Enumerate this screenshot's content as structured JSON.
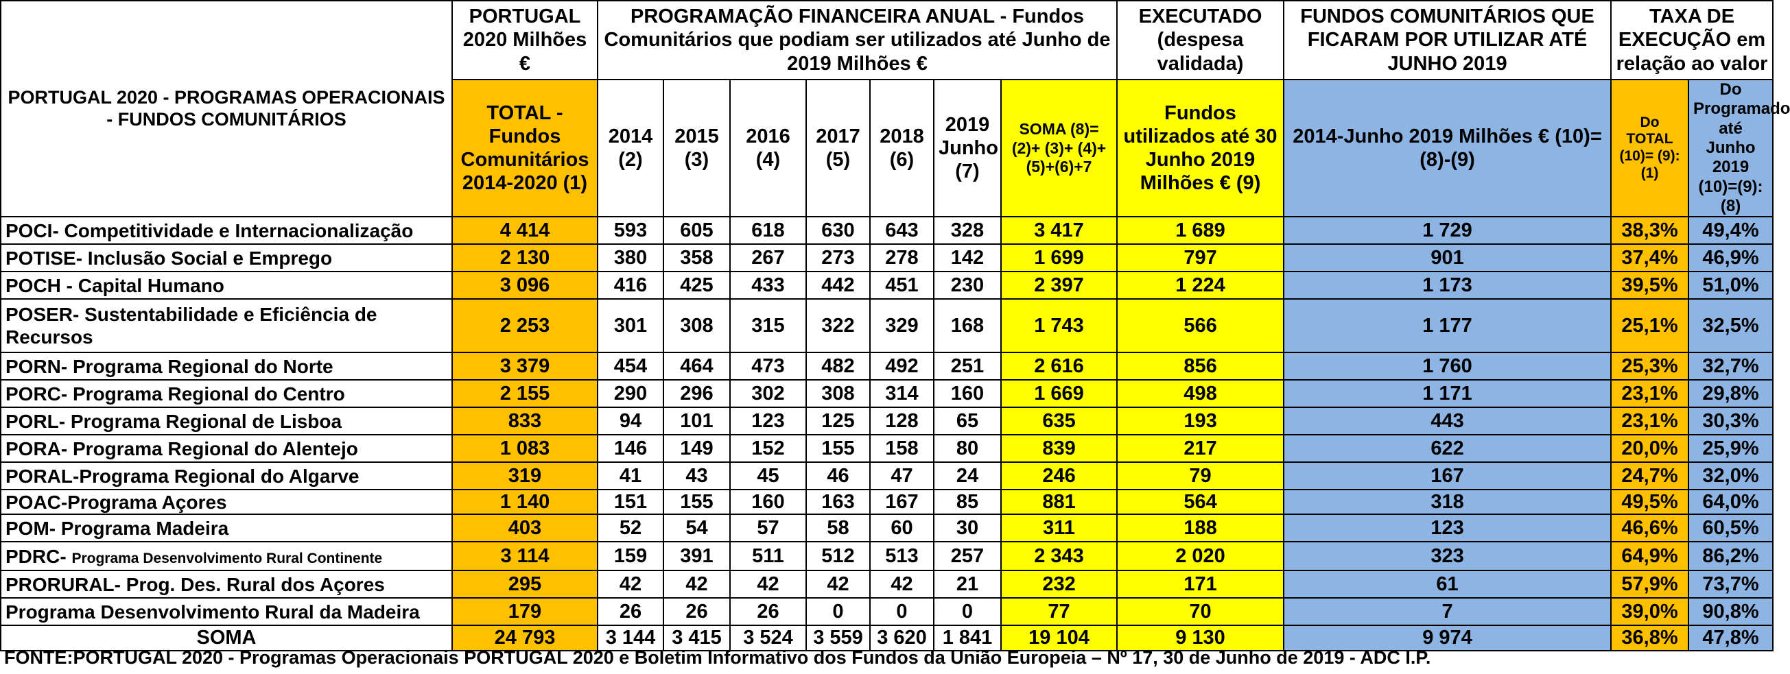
{
  "headers": {
    "program_col": "PORTUGAL 2020 - PROGRAMAS OPERACIONAIS - FUNDOS COMUNITÁRIOS",
    "pt2020_top": "PORTUGAL 2020 Milhões €",
    "pt2020_sub": "TOTAL - Fundos Comunitários 2014-2020 (1)",
    "annual_top": "PROGRAMAÇÃO FINANCEIRA ANUAL - Fundos Comunitários que podiam ser utilizados até Junho de 2019 Milhões €",
    "years": [
      "2014 (2)",
      "2015 (3)",
      "2016 (4)",
      "2017 (5)",
      "2018 (6)",
      "2019 Junho (7)"
    ],
    "soma_sub": "SOMA (8)=(2)+ (3)+ (4)+(5)+(6)+7",
    "executed_top": "EXECUTADO (despesa validada)",
    "executed_sub": "Fundos utilizados até 30 Junho 2019 Milhões € (9)",
    "unused_top": "FUNDOS COMUNITÁRIOS QUE FICARAM POR UTILIZAR ATÉ JUNHO 2019",
    "unused_sub": "2014-Junho 2019 Milhões € (10)=(8)-(9)",
    "rate_top": "TAXA DE EXECUÇÃO em relação ao valor",
    "rate_total_sub": "Do TOTAL (10)= (9): (1)",
    "rate_prog_sub": "Do Programado até Junho 2019 (10)=(9):(8)"
  },
  "rows": [
    {
      "name": "POCI- Competitividade e Internacionalização",
      "small": "",
      "total": "4 414",
      "y2014": "593",
      "y2015": "605",
      "y2016": "618",
      "y2017": "630",
      "y2018": "643",
      "y2019": "328",
      "soma": "3 417",
      "exec": "1 689",
      "unused": "1 729",
      "rate_total": "38,3%",
      "rate_prog": "49,4%"
    },
    {
      "name": "POTISE- Inclusão Social e Emprego",
      "small": "",
      "total": "2 130",
      "y2014": "380",
      "y2015": "358",
      "y2016": "267",
      "y2017": "273",
      "y2018": "278",
      "y2019": "142",
      "soma": "1 699",
      "exec": "797",
      "unused": "901",
      "rate_total": "37,4%",
      "rate_prog": "46,9%"
    },
    {
      "name": "POCH - Capital Humano",
      "small": "",
      "total": "3 096",
      "y2014": "416",
      "y2015": "425",
      "y2016": "433",
      "y2017": "442",
      "y2018": "451",
      "y2019": "230",
      "soma": "2 397",
      "exec": "1 224",
      "unused": "1 173",
      "rate_total": "39,5%",
      "rate_prog": "51,0%"
    },
    {
      "name": "POSER- Sustentabilidade e Eficiência de Recursos",
      "small": "",
      "total": "2 253",
      "y2014": "301",
      "y2015": "308",
      "y2016": "315",
      "y2017": "322",
      "y2018": "329",
      "y2019": "168",
      "soma": "1 743",
      "exec": "566",
      "unused": "1 177",
      "rate_total": "25,1%",
      "rate_prog": "32,5%"
    },
    {
      "name": "PORN- Programa Regional do Norte",
      "small": "",
      "total": "3 379",
      "y2014": "454",
      "y2015": "464",
      "y2016": "473",
      "y2017": "482",
      "y2018": "492",
      "y2019": "251",
      "soma": "2 616",
      "exec": "856",
      "unused": "1 760",
      "rate_total": "25,3%",
      "rate_prog": "32,7%"
    },
    {
      "name": "PORC- Programa Regional do Centro",
      "small": "",
      "total": "2 155",
      "y2014": "290",
      "y2015": "296",
      "y2016": "302",
      "y2017": "308",
      "y2018": "314",
      "y2019": "160",
      "soma": "1 669",
      "exec": "498",
      "unused": "1 171",
      "rate_total": "23,1%",
      "rate_prog": "29,8%"
    },
    {
      "name": "PORL- Programa Regional de Lisboa",
      "small": "",
      "total": "833",
      "y2014": "94",
      "y2015": "101",
      "y2016": "123",
      "y2017": "125",
      "y2018": "128",
      "y2019": "65",
      "soma": "635",
      "exec": "193",
      "unused": "443",
      "rate_total": "23,1%",
      "rate_prog": "30,3%"
    },
    {
      "name": "PORA- Programa Regional do Alentejo",
      "small": "",
      "total": "1 083",
      "y2014": "146",
      "y2015": "149",
      "y2016": "152",
      "y2017": "155",
      "y2018": "158",
      "y2019": "80",
      "soma": "839",
      "exec": "217",
      "unused": "622",
      "rate_total": "20,0%",
      "rate_prog": "25,9%"
    },
    {
      "name": "PORAL-Programa Regional do Algarve",
      "small": "",
      "total": "319",
      "y2014": "41",
      "y2015": "43",
      "y2016": "45",
      "y2017": "46",
      "y2018": "47",
      "y2019": "24",
      "soma": "246",
      "exec": "79",
      "unused": "167",
      "rate_total": "24,7%",
      "rate_prog": "32,0%"
    },
    {
      "name": "POAC-Programa Açores",
      "small": "",
      "total": "1 140",
      "y2014": "151",
      "y2015": "155",
      "y2016": "160",
      "y2017": "163",
      "y2018": "167",
      "y2019": "85",
      "soma": "881",
      "exec": "564",
      "unused": "318",
      "rate_total": "49,5%",
      "rate_prog": "64,0%"
    },
    {
      "name": "POM- Programa Madeira",
      "small": "",
      "total": "403",
      "y2014": "52",
      "y2015": "54",
      "y2016": "57",
      "y2017": "58",
      "y2018": "60",
      "y2019": "30",
      "soma": "311",
      "exec": "188",
      "unused": "123",
      "rate_total": "46,6%",
      "rate_prog": "60,5%"
    },
    {
      "name": "PDRC- ",
      "small": "Programa Desenvolvimento Rural Continente",
      "total": "3 114",
      "y2014": "159",
      "y2015": "391",
      "y2016": "511",
      "y2017": "512",
      "y2018": "513",
      "y2019": "257",
      "soma": "2 343",
      "exec": "2 020",
      "unused": "323",
      "rate_total": "64,9%",
      "rate_prog": "86,2%"
    },
    {
      "name": "PRORURAL- Prog. Des. Rural dos Açores",
      "small": "",
      "total": "295",
      "y2014": "42",
      "y2015": "42",
      "y2016": "42",
      "y2017": "42",
      "y2018": "42",
      "y2019": "21",
      "soma": "232",
      "exec": "171",
      "unused": "61",
      "rate_total": "57,9%",
      "rate_prog": "73,7%"
    },
    {
      "name": "Programa Desenvolvimento Rural da Madeira",
      "small": "",
      "total": "179",
      "y2014": "26",
      "y2015": "26",
      "y2016": "26",
      "y2017": "0",
      "y2018": "0",
      "y2019": "0",
      "soma": "77",
      "exec": "70",
      "unused": "7",
      "rate_total": "39,0%",
      "rate_prog": "90,8%"
    }
  ],
  "totals": {
    "name": "SOMA",
    "total": "24 793",
    "y2014": "3 144",
    "y2015": "3 415",
    "y2016": "3 524",
    "y2017": "3 559",
    "y2018": "3 620",
    "y2019": "1 841",
    "soma": "19 104",
    "exec": "9 130",
    "unused": "9 974",
    "rate_total": "36,8%",
    "rate_prog": "47,8%"
  },
  "footer": "FONTE:PORTUGAL 2020 - Programas Operacionais PORTUGAL 2020 e Boletim Informativo dos Fundos da União Europeia – Nº 17, 30 de Junho de 2019 - ADC I.P.",
  "colors": {
    "orange": "#ffc000",
    "yellow": "#ffff00",
    "blue": "#8db4e2"
  }
}
